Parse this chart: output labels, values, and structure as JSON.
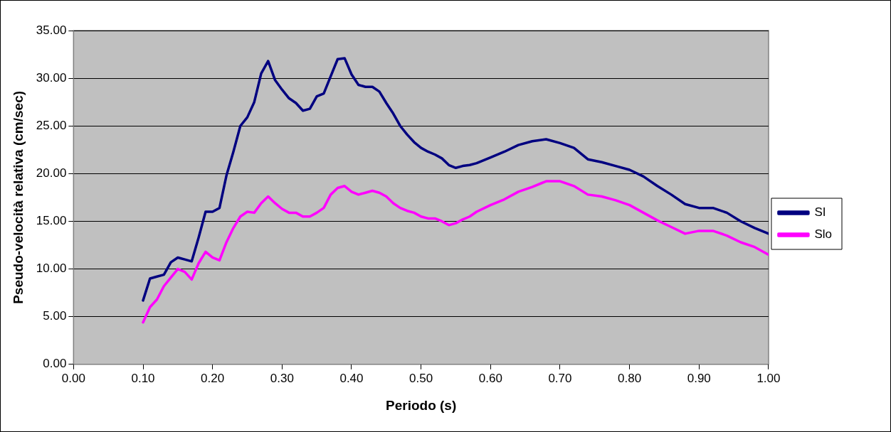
{
  "chart_data": {
    "type": "line",
    "xlabel": "Periodo (s)",
    "ylabel": "Pseudo-velocità relativa (cm/sec)",
    "x": [
      0.1,
      0.11,
      0.12,
      0.13,
      0.14,
      0.15,
      0.16,
      0.17,
      0.18,
      0.19,
      0.2,
      0.21,
      0.22,
      0.23,
      0.24,
      0.25,
      0.26,
      0.27,
      0.28,
      0.29,
      0.3,
      0.31,
      0.32,
      0.33,
      0.34,
      0.35,
      0.36,
      0.37,
      0.38,
      0.39,
      0.4,
      0.41,
      0.42,
      0.43,
      0.44,
      0.45,
      0.46,
      0.47,
      0.48,
      0.49,
      0.5,
      0.51,
      0.52,
      0.53,
      0.54,
      0.55,
      0.56,
      0.57,
      0.58,
      0.6,
      0.62,
      0.64,
      0.66,
      0.68,
      0.7,
      0.72,
      0.74,
      0.76,
      0.78,
      0.8,
      0.82,
      0.84,
      0.86,
      0.88,
      0.9,
      0.92,
      0.94,
      0.96,
      0.98,
      1.0
    ],
    "series": [
      {
        "name": "SI",
        "color": "#000080",
        "values": [
          6.7,
          9.0,
          9.2,
          9.4,
          10.7,
          11.2,
          11.0,
          10.8,
          13.3,
          16.0,
          16.0,
          16.4,
          19.8,
          22.3,
          25.0,
          25.9,
          27.5,
          30.5,
          31.8,
          29.8,
          28.8,
          27.9,
          27.4,
          26.6,
          26.8,
          28.1,
          28.4,
          30.2,
          32.0,
          32.1,
          30.4,
          29.3,
          29.1,
          29.1,
          28.6,
          27.4,
          26.3,
          25.0,
          24.1,
          23.3,
          22.7,
          22.3,
          22.0,
          21.6,
          20.9,
          20.6,
          20.8,
          20.9,
          21.1,
          21.7,
          22.3,
          23.0,
          23.4,
          23.6,
          23.2,
          22.7,
          21.5,
          21.2,
          20.8,
          20.4,
          19.7,
          18.7,
          17.8,
          16.8,
          16.4,
          16.4,
          15.9,
          15.0,
          14.3,
          13.7
        ]
      },
      {
        "name": "Slo",
        "color": "#ff00ff",
        "values": [
          4.4,
          6.0,
          6.8,
          8.2,
          9.1,
          10.0,
          9.7,
          8.9,
          10.6,
          11.8,
          11.2,
          10.9,
          12.8,
          14.3,
          15.5,
          16.0,
          15.9,
          16.9,
          17.6,
          16.9,
          16.3,
          15.9,
          15.9,
          15.5,
          15.5,
          15.9,
          16.4,
          17.8,
          18.5,
          18.7,
          18.1,
          17.8,
          18.0,
          18.2,
          18.0,
          17.6,
          16.9,
          16.4,
          16.1,
          15.9,
          15.5,
          15.3,
          15.3,
          15.0,
          14.6,
          14.8,
          15.2,
          15.5,
          16.0,
          16.7,
          17.3,
          18.1,
          18.6,
          19.2,
          19.2,
          18.7,
          17.8,
          17.6,
          17.2,
          16.7,
          15.9,
          15.1,
          14.4,
          13.7,
          14.0,
          14.0,
          13.5,
          12.8,
          12.3,
          11.5
        ]
      }
    ],
    "xlim": [
      0,
      1
    ],
    "xticks": [
      {
        "value": 0,
        "label": "0.00"
      },
      {
        "value": 0.1,
        "label": "0.10"
      },
      {
        "value": 0.2,
        "label": "0.20"
      },
      {
        "value": 0.3,
        "label": "0.30"
      },
      {
        "value": 0.4,
        "label": "0.40"
      },
      {
        "value": 0.5,
        "label": "0.50"
      },
      {
        "value": 0.6,
        "label": "0.60"
      },
      {
        "value": 0.7,
        "label": "0.70"
      },
      {
        "value": 0.8,
        "label": "0.80"
      },
      {
        "value": 0.9,
        "label": "0.90"
      },
      {
        "value": 1,
        "label": "1.00"
      }
    ],
    "ylim": [
      0,
      35
    ],
    "yticks": [
      {
        "value": 0,
        "label": "0.00"
      },
      {
        "value": 5,
        "label": "5.00"
      },
      {
        "value": 10,
        "label": "10.00"
      },
      {
        "value": 15,
        "label": "15.00"
      },
      {
        "value": 20,
        "label": "20.00"
      },
      {
        "value": 25,
        "label": "25.00"
      },
      {
        "value": 30,
        "label": "30.00"
      },
      {
        "value": 35,
        "label": "35.00"
      }
    ],
    "grid": "y",
    "legend": "right",
    "marker": "none",
    "line_style": "solid"
  }
}
